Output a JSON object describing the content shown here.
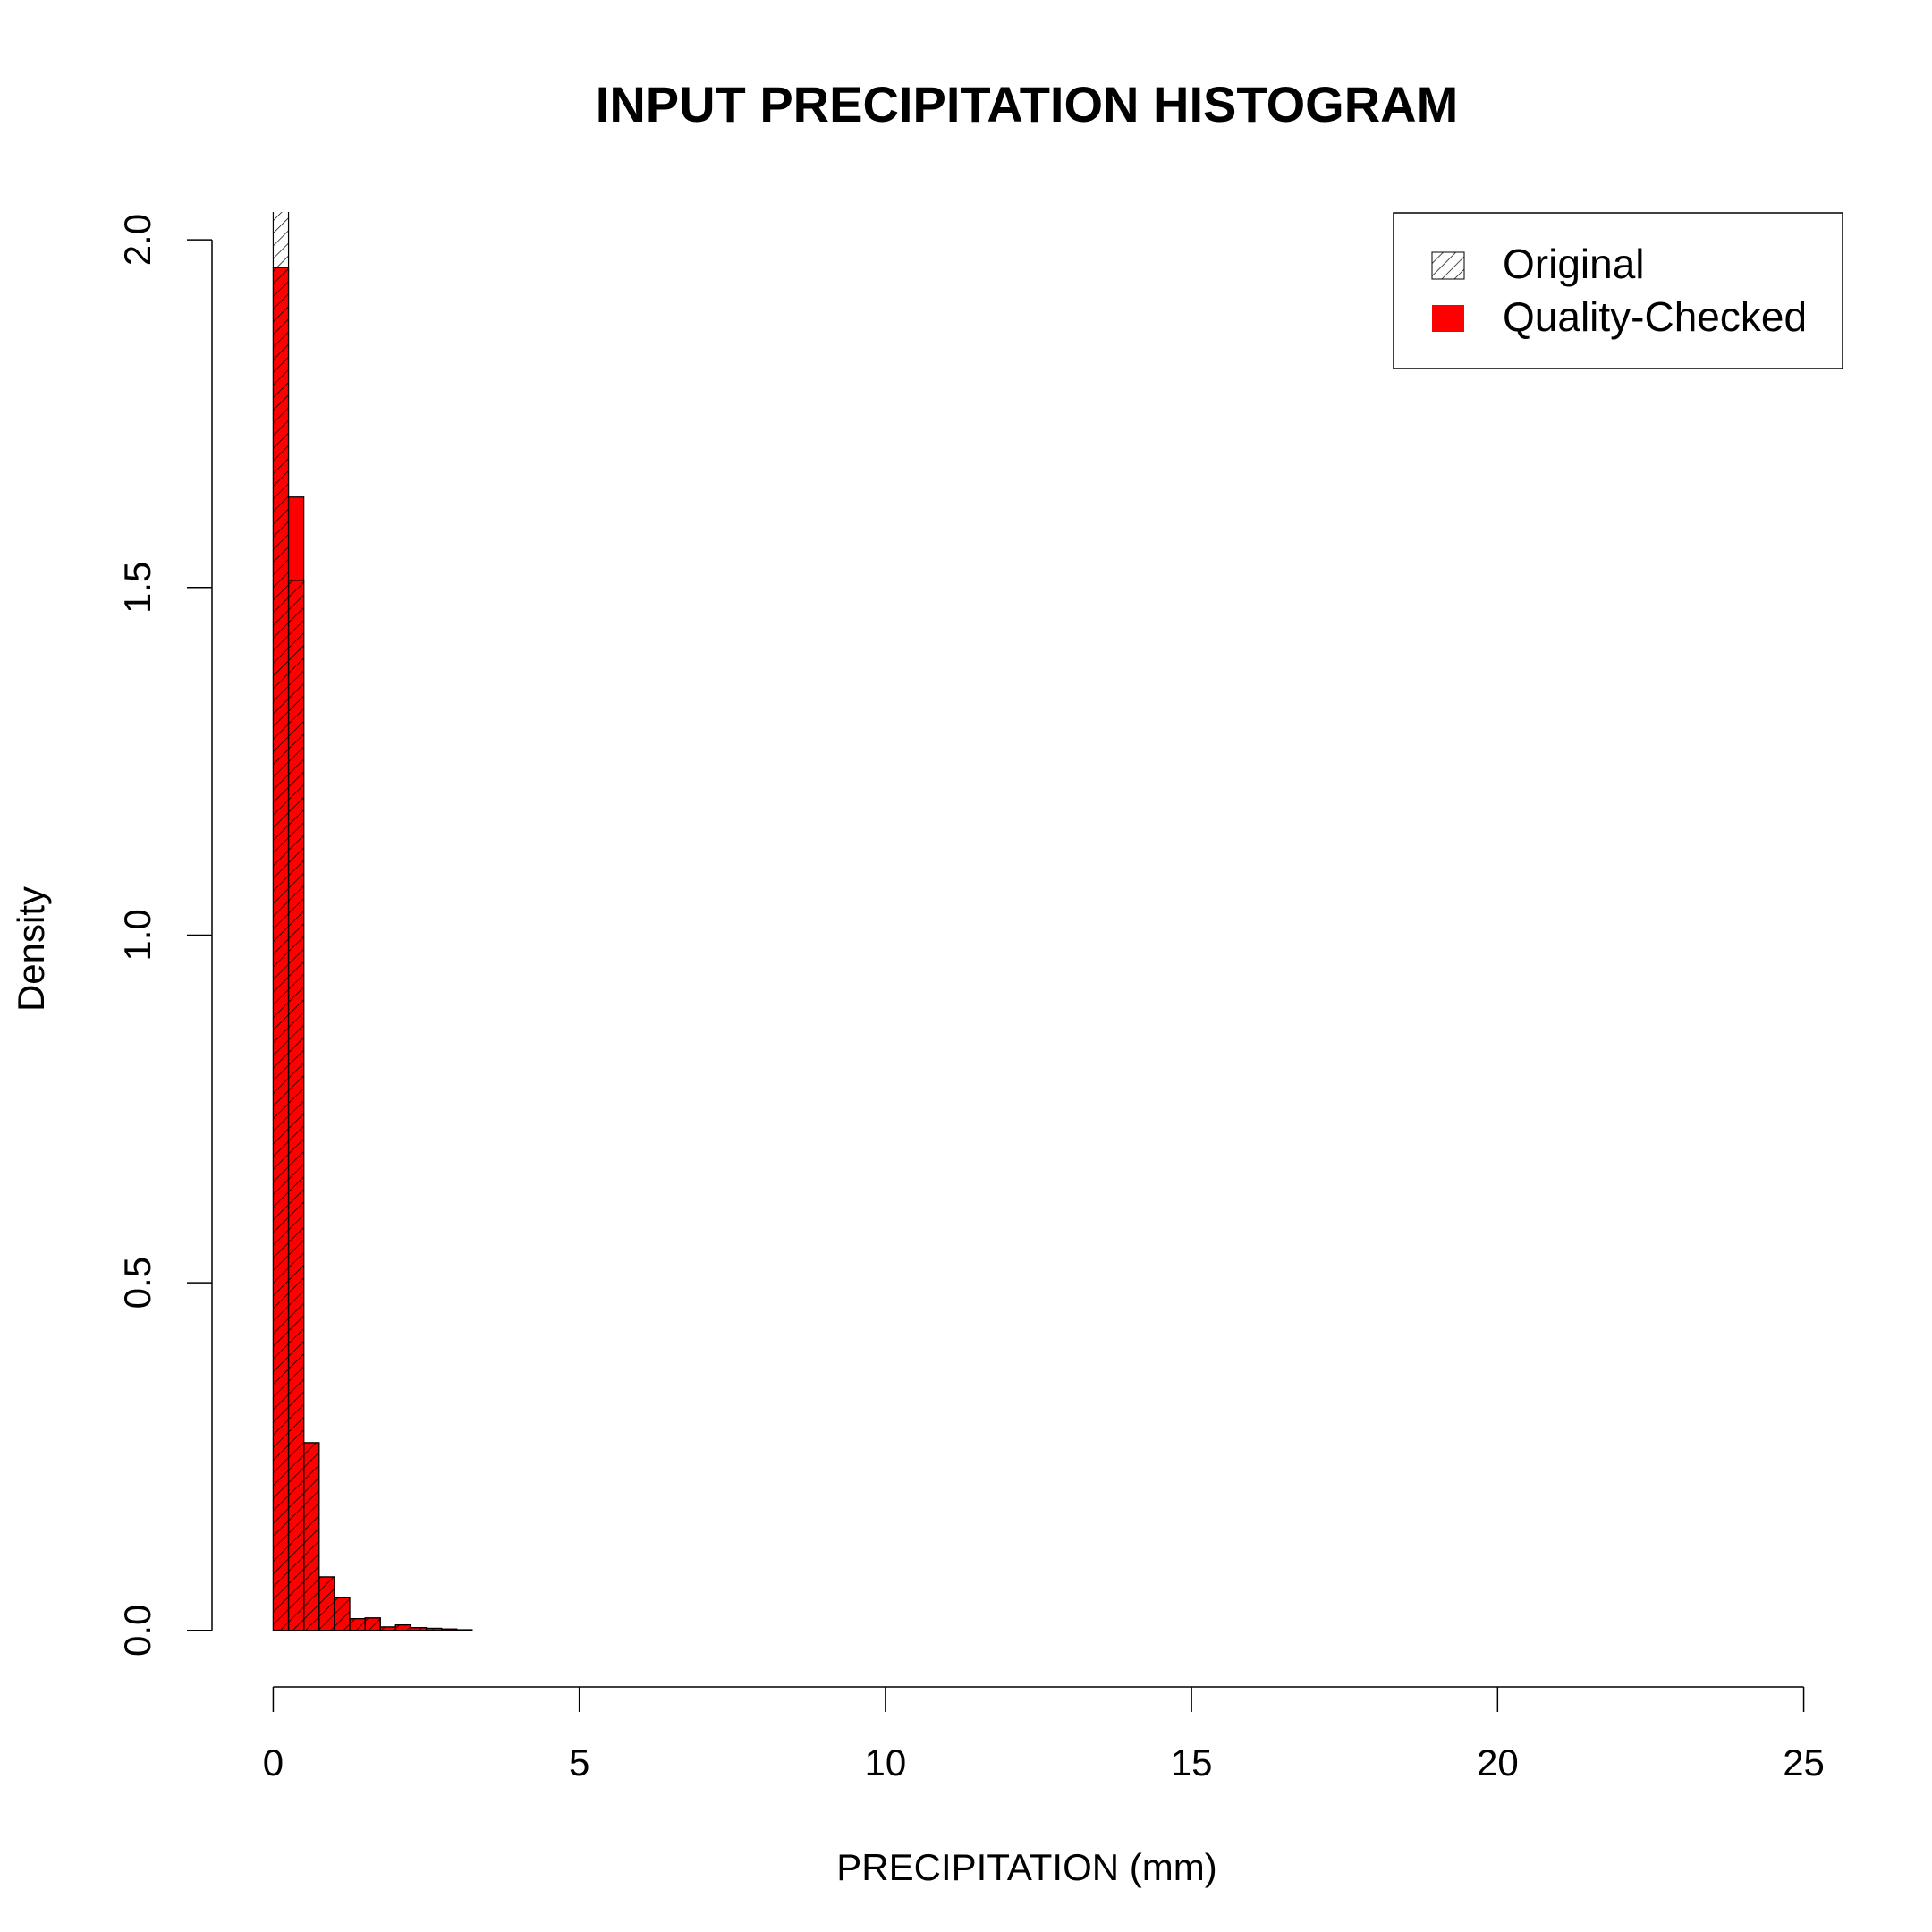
{
  "chart_data": {
    "type": "histogram",
    "title": "INPUT PRECIPITATION HISTOGRAM",
    "x_label": "PRECIPITATION (mm)",
    "y_label": "Density",
    "bins": [
      0,
      0.25,
      0.5,
      0.75,
      1,
      1.25,
      1.5,
      1.75,
      2,
      2.25,
      2.5,
      2.75,
      3,
      3.25,
      3.5,
      3.75,
      4,
      4.25,
      4.5,
      4.75,
      5,
      5.25,
      5.5,
      5.75,
      6,
      6.25,
      6.5,
      6.75,
      7,
      7.25,
      7.5,
      7.75,
      8,
      8.25,
      8.5,
      8.75,
      9,
      9.25,
      9.5,
      9.75,
      10,
      10.25,
      10.5,
      10.75,
      11,
      11.25,
      11.5,
      11.75,
      12,
      12.25,
      12.5,
      12.75,
      13,
      13.25,
      13.5,
      13.75,
      14,
      14.25,
      14.5,
      14.75,
      15,
      15.25,
      15.5,
      15.75,
      16,
      16.25,
      16.5,
      16.75,
      17,
      17.25,
      17.5,
      17.75,
      18,
      18.25,
      18.5,
      18.75,
      19,
      19.25,
      19.5,
      19.75,
      20,
      20.25,
      20.5,
      20.75,
      21,
      21.25,
      21.5,
      21.75,
      22,
      22.25,
      22.5,
      22.75,
      23,
      23.25,
      23.5,
      23.75,
      24,
      24.25,
      24.5,
      24.75
    ],
    "series": [
      {
        "name": "Original",
        "color": "#000000",
        "pattern": "hatch",
        "values": [
          2.1,
          1.51,
          0.27,
          0.077,
          0.047,
          0.017,
          0.018,
          0.005,
          0.008,
          0.004,
          0.003,
          0.002,
          0.001,
          0,
          0,
          0,
          0,
          0,
          0,
          0,
          0,
          0,
          0,
          0,
          0,
          0,
          0,
          0,
          0,
          0,
          0,
          0,
          0,
          0,
          0,
          0,
          0,
          0,
          0,
          0,
          0,
          0,
          0,
          0,
          0,
          0,
          0,
          0,
          0,
          0,
          0,
          0,
          0,
          0,
          0,
          0,
          0,
          0,
          0,
          0,
          0,
          0,
          0,
          0,
          0,
          0,
          0,
          0,
          0,
          0,
          0,
          0,
          0,
          0,
          0,
          0,
          0,
          0,
          0,
          0,
          0,
          0,
          0,
          0,
          0,
          0,
          0,
          0,
          0,
          0,
          0,
          0,
          0,
          0,
          0,
          0,
          0,
          0,
          0
        ]
      },
      {
        "name": "Quality-Checked",
        "color": "#ff0000",
        "pattern": "solid",
        "values": [
          1.96,
          1.63,
          0.27,
          0.077,
          0.047,
          0.017,
          0.018,
          0.005,
          0.008,
          0.004,
          0.003,
          0.002,
          0.001,
          0,
          0,
          0,
          0,
          0,
          0,
          0,
          0,
          0,
          0,
          0,
          0,
          0,
          0,
          0,
          0,
          0,
          0,
          0,
          0,
          0,
          0,
          0,
          0,
          0,
          0,
          0,
          0,
          0,
          0,
          0,
          0,
          0,
          0,
          0,
          0,
          0,
          0,
          0,
          0,
          0,
          0,
          0,
          0,
          0,
          0,
          0,
          0,
          0,
          0,
          0,
          0,
          0,
          0,
          0,
          0,
          0,
          0,
          0,
          0,
          0,
          0,
          0,
          0,
          0,
          0,
          0,
          0,
          0,
          0,
          0,
          0,
          0,
          0,
          0,
          0,
          0,
          0,
          0,
          0,
          0,
          0,
          0,
          0,
          0,
          0
        ]
      }
    ],
    "xlim": [
      -1,
      26
    ],
    "xticks": [
      0,
      5,
      10,
      15,
      20,
      25
    ],
    "ylim": [
      -0.08,
      2.04
    ],
    "yticks": [
      {
        "value": 0,
        "label": "0.0"
      },
      {
        "value": 0.5,
        "label": "0.5"
      },
      {
        "value": 1,
        "label": "1.0"
      },
      {
        "value": 1.5,
        "label": "1.5"
      },
      {
        "value": 2,
        "label": "2.0"
      }
    ],
    "legend": "top-right"
  }
}
